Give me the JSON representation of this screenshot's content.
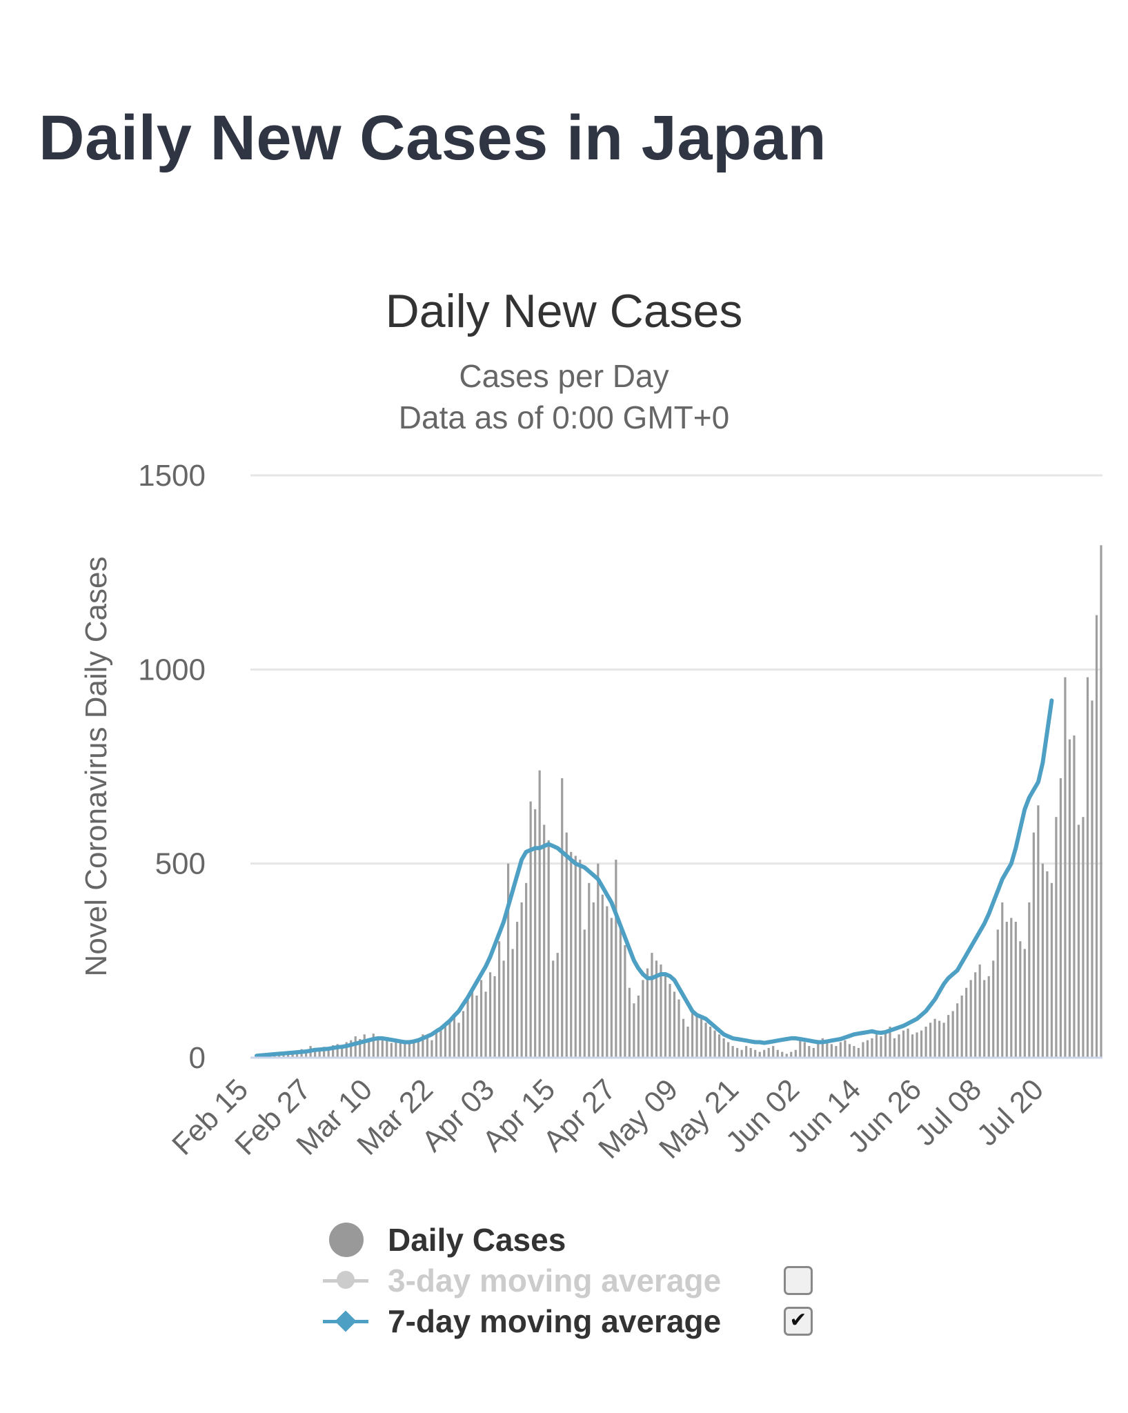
{
  "page": {
    "title": "Daily New Cases in Japan"
  },
  "chart_data": {
    "type": "bar",
    "title": "Daily New Cases",
    "subtitle_lines": [
      "Cases per Day",
      "Data as of 0:00 GMT+0"
    ],
    "xlabel": "",
    "ylabel": "Novel Coronavirus Daily Cases",
    "ylim": [
      0,
      1500
    ],
    "yticks": [
      0,
      500,
      1000,
      1500
    ],
    "xticks": [
      "Feb 15",
      "Feb 27",
      "Mar 10",
      "Mar 22",
      "Apr 03",
      "Apr 15",
      "Apr 27",
      "May 09",
      "May 21",
      "Jun 02",
      "Jun 14",
      "Jun 26",
      "Jul 08",
      "Jul 20"
    ],
    "grid": true,
    "legend_position": "bottom",
    "start_date": "Feb 15",
    "colors": {
      "bars": "#9e9e9e",
      "ma7": "#4e9fc4",
      "ma3_disabled": "#cccccc",
      "grid": "#e6e6e6"
    },
    "series": [
      {
        "name": "Daily Cases",
        "type": "bar",
        "values": [
          3,
          5,
          6,
          4,
          8,
          10,
          12,
          15,
          14,
          16,
          22,
          18,
          30,
          25,
          20,
          28,
          24,
          32,
          35,
          30,
          40,
          45,
          55,
          48,
          60,
          50,
          62,
          55,
          48,
          45,
          38,
          40,
          45,
          42,
          40,
          38,
          50,
          60,
          55,
          45,
          65,
          70,
          80,
          100,
          110,
          90,
          120,
          150,
          180,
          160,
          200,
          170,
          220,
          210,
          300,
          250,
          500,
          280,
          350,
          400,
          450,
          660,
          640,
          740,
          600,
          560,
          250,
          270,
          720,
          580,
          530,
          520,
          510,
          330,
          450,
          400,
          500,
          420,
          390,
          360,
          510,
          340,
          290,
          180,
          140,
          160,
          200,
          230,
          270,
          250,
          240,
          210,
          190,
          170,
          150,
          100,
          80,
          120,
          110,
          100,
          90,
          80,
          70,
          60,
          50,
          40,
          30,
          25,
          20,
          30,
          25,
          20,
          15,
          20,
          25,
          30,
          20,
          15,
          10,
          15,
          20,
          50,
          40,
          30,
          25,
          45,
          50,
          40,
          35,
          30,
          40,
          45,
          35,
          30,
          25,
          40,
          45,
          50,
          60,
          55,
          70,
          80,
          50,
          60,
          70,
          75,
          60,
          65,
          70,
          80,
          90,
          100,
          95,
          90,
          110,
          120,
          140,
          160,
          180,
          200,
          220,
          240,
          200,
          210,
          250,
          330,
          400,
          350,
          360,
          350,
          300,
          280,
          400,
          580,
          650,
          500,
          480,
          450,
          620,
          720,
          980,
          820,
          830,
          600,
          620,
          980,
          920,
          1140,
          1320
        ]
      },
      {
        "name": "3-day moving average",
        "visible": false,
        "values": []
      },
      {
        "name": "7-day moving average",
        "type": "line",
        "values": [
          5,
          6,
          7,
          8,
          9,
          10,
          11,
          12,
          13,
          14,
          15,
          16,
          18,
          20,
          21,
          22,
          23,
          25,
          27,
          28,
          30,
          33,
          36,
          39,
          42,
          45,
          48,
          50,
          50,
          48,
          46,
          44,
          42,
          40,
          40,
          42,
          45,
          50,
          55,
          60,
          68,
          75,
          85,
          95,
          108,
          120,
          138,
          155,
          175,
          195,
          215,
          235,
          260,
          290,
          320,
          350,
          390,
          430,
          470,
          510,
          530,
          535,
          540,
          540,
          545,
          550,
          545,
          540,
          530,
          520,
          510,
          500,
          495,
          490,
          480,
          470,
          460,
          440,
          420,
          400,
          370,
          340,
          310,
          280,
          250,
          230,
          215,
          205,
          205,
          210,
          215,
          215,
          210,
          200,
          180,
          160,
          140,
          120,
          110,
          105,
          100,
          90,
          80,
          70,
          60,
          55,
          50,
          48,
          46,
          44,
          42,
          40,
          40,
          38,
          40,
          42,
          44,
          46,
          48,
          50,
          50,
          48,
          46,
          44,
          42,
          40,
          40,
          42,
          44,
          46,
          48,
          52,
          56,
          60,
          62,
          64,
          66,
          68,
          65,
          64,
          66,
          70,
          74,
          78,
          82,
          88,
          94,
          100,
          110,
          120,
          135,
          150,
          170,
          190,
          205,
          215,
          225,
          245,
          265,
          285,
          305,
          325,
          345,
          370,
          400,
          430,
          460,
          480,
          500,
          540,
          590,
          640,
          670,
          690,
          710,
          760,
          840,
          920
        ]
      }
    ]
  },
  "legend": {
    "items": [
      {
        "label": "Daily Cases",
        "enabled": true,
        "has_checkbox": false
      },
      {
        "label": "3-day moving average",
        "enabled": false,
        "has_checkbox": true,
        "checked": false
      },
      {
        "label": "7-day moving average",
        "enabled": true,
        "has_checkbox": true,
        "checked": true
      }
    ]
  }
}
